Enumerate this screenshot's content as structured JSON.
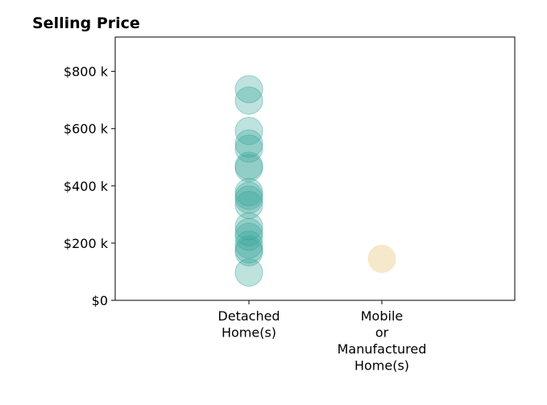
{
  "chart_data": {
    "type": "scatter",
    "title": "Selling Price",
    "xlabel": "",
    "ylabel": "",
    "categories": [
      "Detached\nHome(s)",
      "Mobile\nor\nManufactured\nHome(s)"
    ],
    "ylim": [
      0,
      920000
    ],
    "yticks": [
      0,
      200000,
      400000,
      600000,
      800000
    ],
    "ytick_labels": [
      "$0",
      "$200 k",
      "$400 k",
      "$600 k",
      "$800 k"
    ],
    "grid": false,
    "legend": "none",
    "series": [
      {
        "category": "Detached\nHome(s)",
        "color": "#3aa89a",
        "values": [
          738000,
          698000,
          592000,
          548000,
          530000,
          470000,
          462000,
          378000,
          365000,
          352000,
          333000,
          258000,
          238000,
          222000,
          195000,
          178000,
          168000,
          97000
        ]
      },
      {
        "category": "Mobile\nor\nManufactured\nHome(s)",
        "color": "#f0dba8",
        "values": [
          145000
        ]
      }
    ]
  }
}
